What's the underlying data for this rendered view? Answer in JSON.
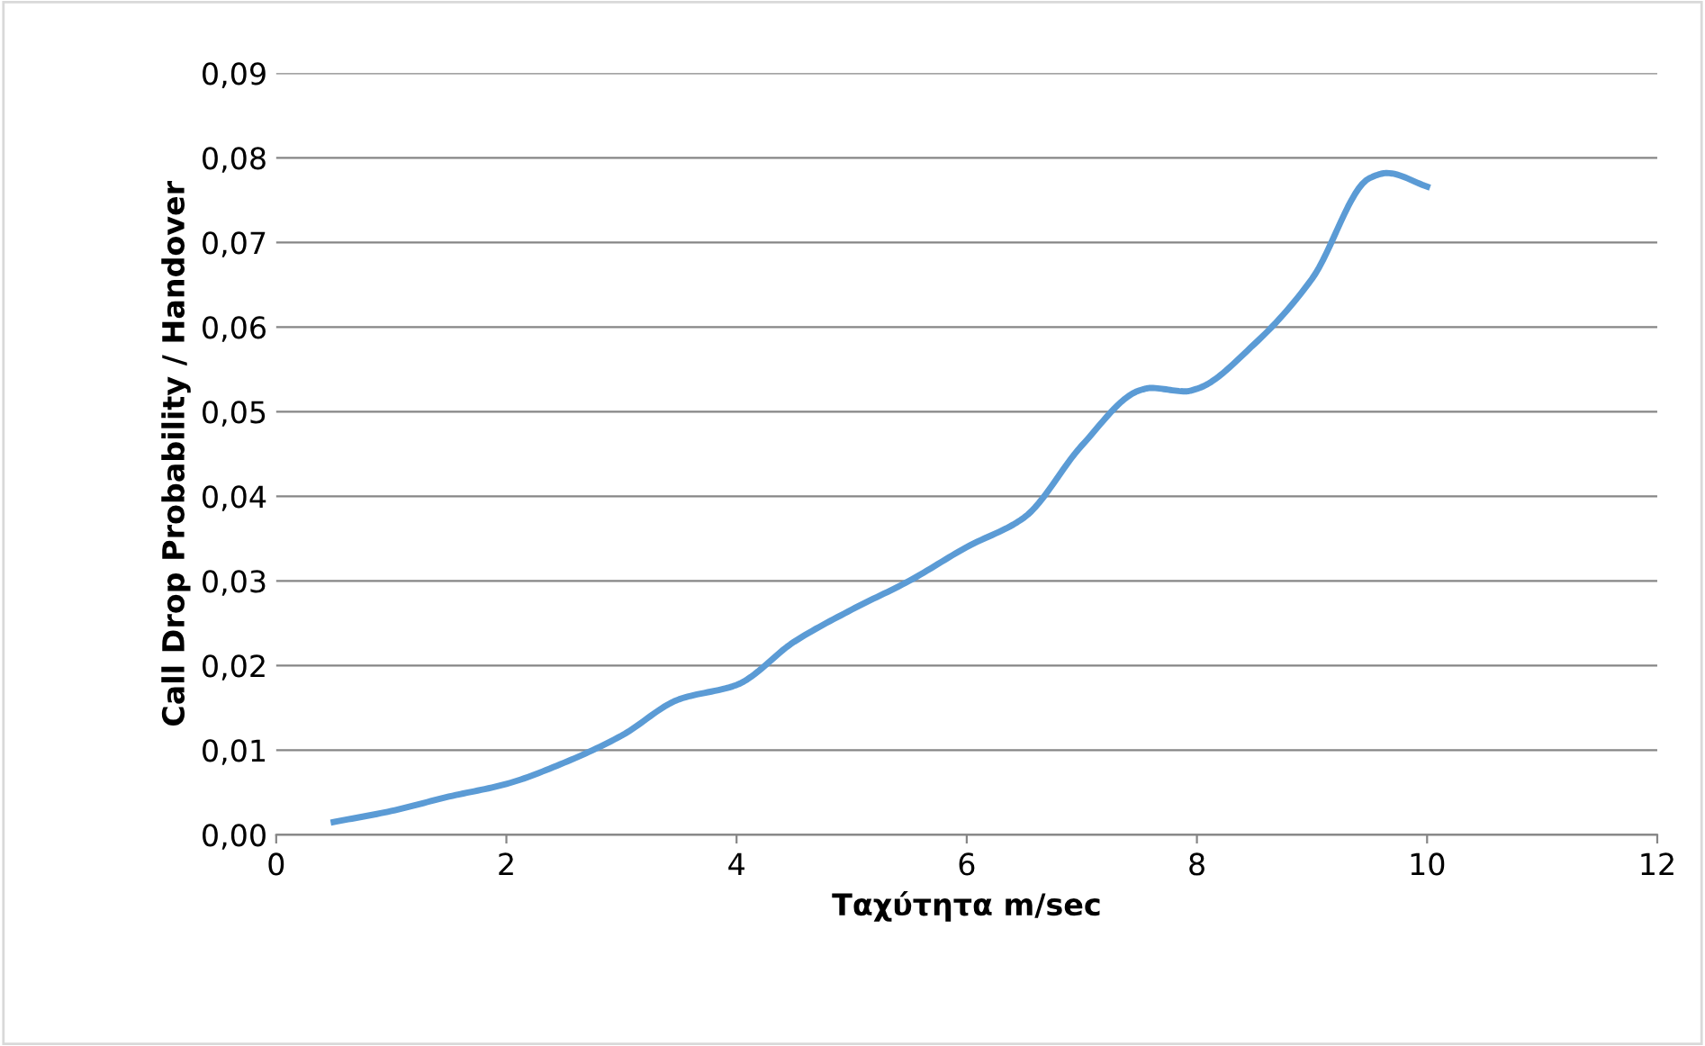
{
  "chart_data": {
    "type": "line",
    "xlabel": "Ταχύτητα m/sec",
    "ylabel": "Call Drop Probability / Handover",
    "x": [
      0.5,
      1,
      1.5,
      2,
      2.5,
      3,
      3.5,
      4,
      4.5,
      5,
      5.5,
      6,
      6.5,
      7,
      7.5,
      7.6,
      7.9,
      8,
      8.5,
      9,
      9.5,
      9.65,
      10
    ],
    "series": [
      {
        "color": "#5b9bd5",
        "values": [
          0.0015,
          0.0028,
          0.0045,
          0.006,
          0.0085,
          0.0117,
          0.016,
          0.0177,
          0.0228,
          0.0266,
          0.03,
          0.034,
          0.0375,
          0.046,
          0.0525,
          0.0528,
          0.0524,
          0.0527,
          0.058,
          0.0657,
          0.0776,
          0.0782,
          0.0766
        ]
      }
    ],
    "xlim": [
      0,
      12
    ],
    "xticks": [
      0,
      2,
      4,
      6,
      8,
      10,
      12
    ],
    "ylim": [
      0,
      0.09
    ],
    "yticks": [
      {
        "value": 0,
        "label": "0,00"
      },
      {
        "value": 0.01,
        "label": "0,01"
      },
      {
        "value": 0.02,
        "label": "0,02"
      },
      {
        "value": 0.03,
        "label": "0,03"
      },
      {
        "value": 0.04,
        "label": "0,04"
      },
      {
        "value": 0.05,
        "label": "0,05"
      },
      {
        "value": 0.06,
        "label": "0,06"
      },
      {
        "value": 0.07,
        "label": "0,07"
      },
      {
        "value": 0.08,
        "label": "0,08"
      },
      {
        "value": 0.09,
        "label": "0,09"
      }
    ],
    "grid": "y",
    "marker": "none",
    "line_style": "solid",
    "legend": false
  }
}
